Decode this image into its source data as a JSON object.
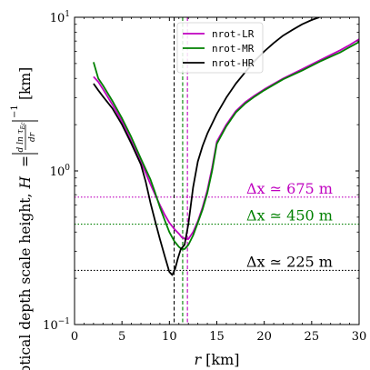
{
  "chart_data": {
    "type": "line",
    "xlabel": "r [km]",
    "xlabel_main": "r",
    "xlabel_unit": "[km]",
    "ylabel": "Optical depth scale height, H = |d ln τ_Ec / dr|^{-1} [km]",
    "ylabel_text": "Optical depth scale height,",
    "ylabel_H": "H",
    "ylabel_unit": "[km]",
    "ylabel_frac_num": "d ln τ",
    "ylabel_frac_sub": "Ec",
    "ylabel_frac_den": "dr",
    "ylabel_exp": "−1",
    "y_scale": "log",
    "xlim": [
      0,
      30
    ],
    "ylim": [
      0.1,
      10
    ],
    "x_ticks": [
      {
        "v": 0,
        "label": "0"
      },
      {
        "v": 5,
        "label": "5"
      },
      {
        "v": 10,
        "label": "10"
      },
      {
        "v": 15,
        "label": "15"
      },
      {
        "v": 20,
        "label": "20"
      },
      {
        "v": 25,
        "label": "25"
      },
      {
        "v": 30,
        "label": "30"
      }
    ],
    "y_ticks": [
      {
        "v": 0.1,
        "base": "10",
        "exp": "−1"
      },
      {
        "v": 1,
        "base": "10",
        "exp": "0"
      },
      {
        "v": 10,
        "base": "10",
        "exp": "1"
      }
    ],
    "grid": false,
    "legend_position": "top-center",
    "series": [
      {
        "name": "nrot-LR",
        "color": "#bf00bf",
        "x": [
          2.0,
          2.5,
          3.0,
          4.0,
          5.0,
          6.0,
          7.0,
          8.0,
          8.5,
          9.0,
          9.5,
          10.0,
          10.5,
          11.0,
          11.3,
          11.7,
          12.0,
          12.5,
          13.0,
          13.5,
          14.0,
          14.5,
          15.0,
          16.0,
          17.0,
          18.0,
          19.0,
          20.0,
          22.0,
          24.0,
          26.0,
          28.0,
          29.0,
          30.0
        ],
        "y": [
          4.1,
          3.8,
          3.4,
          2.7,
          2.1,
          1.55,
          1.15,
          0.82,
          0.7,
          0.6,
          0.52,
          0.46,
          0.42,
          0.39,
          0.37,
          0.36,
          0.36,
          0.4,
          0.47,
          0.58,
          0.75,
          1.05,
          1.55,
          2.0,
          2.45,
          2.8,
          3.1,
          3.4,
          4.0,
          4.6,
          5.3,
          6.1,
          6.6,
          7.2
        ]
      },
      {
        "name": "nrot-MR",
        "color": "#008000",
        "x": [
          2.0,
          2.5,
          3.0,
          4.0,
          5.0,
          6.0,
          7.0,
          8.0,
          8.5,
          9.0,
          9.5,
          10.0,
          10.5,
          11.0,
          11.3,
          11.6,
          12.0,
          12.5,
          13.0,
          13.5,
          14.0,
          14.5,
          15.0,
          16.0,
          17.0,
          18.0,
          19.0,
          20.0,
          22.0,
          24.0,
          26.0,
          28.0,
          29.0,
          30.0
        ],
        "y": [
          5.1,
          4.0,
          3.6,
          2.85,
          2.2,
          1.65,
          1.2,
          0.88,
          0.72,
          0.58,
          0.48,
          0.4,
          0.35,
          0.32,
          0.31,
          0.31,
          0.33,
          0.38,
          0.46,
          0.56,
          0.72,
          1.0,
          1.5,
          1.95,
          2.4,
          2.75,
          3.05,
          3.35,
          3.95,
          4.5,
          5.2,
          5.9,
          6.4,
          6.9
        ]
      },
      {
        "name": "nrot-HR",
        "color": "#000000",
        "x": [
          2.0,
          2.5,
          3.0,
          4.0,
          5.0,
          6.0,
          7.0,
          7.5,
          8.0,
          8.5,
          9.0,
          9.5,
          10.0,
          10.3,
          10.6,
          10.9,
          11.2,
          11.6,
          12.0,
          12.5,
          13.0,
          13.5,
          14.0,
          15.0,
          16.0,
          17.0,
          18.0,
          19.0,
          20.0,
          21.0,
          22.0,
          23.0,
          24.0,
          25.0,
          25.8
        ],
        "y": [
          3.7,
          3.35,
          3.05,
          2.55,
          2.0,
          1.5,
          1.1,
          0.85,
          0.62,
          0.47,
          0.36,
          0.28,
          0.22,
          0.21,
          0.23,
          0.27,
          0.31,
          0.33,
          0.45,
          0.78,
          1.15,
          1.45,
          1.75,
          2.35,
          3.0,
          3.7,
          4.4,
          5.2,
          6.0,
          6.8,
          7.6,
          8.3,
          9.0,
          9.6,
          10.0
        ]
      }
    ],
    "vlines": [
      {
        "x": 10.5,
        "color": "#000000"
      },
      {
        "x": 11.4,
        "color": "#008000"
      },
      {
        "x": 11.9,
        "color": "#bf00bf"
      }
    ],
    "hlines": [
      {
        "y": 0.675,
        "color": "#bf00bf",
        "label": "Δx ≃ 675 m"
      },
      {
        "y": 0.45,
        "color": "#008000",
        "label": "Δx ≃ 450 m"
      },
      {
        "y": 0.225,
        "color": "#000000",
        "label": "Δx ≃ 225 m"
      }
    ]
  }
}
